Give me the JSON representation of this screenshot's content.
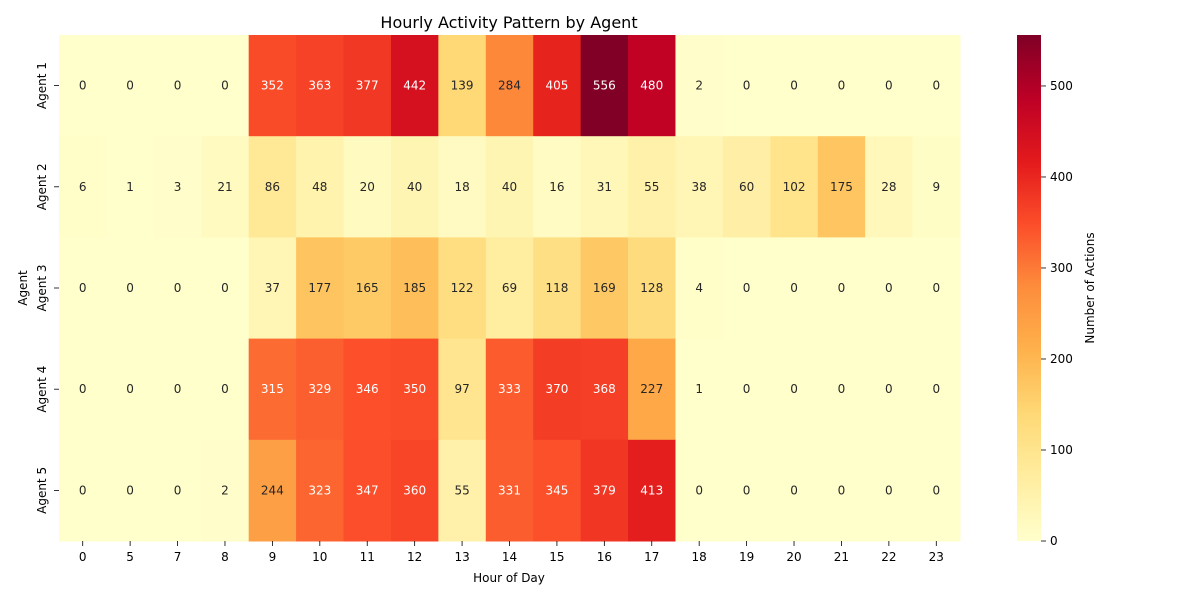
{
  "chart_data": {
    "type": "heatmap",
    "title": "Hourly Activity Pattern by Agent",
    "xlabel": "Hour of Day",
    "ylabel": "Agent",
    "x": [
      "0",
      "5",
      "7",
      "8",
      "9",
      "10",
      "11",
      "12",
      "13",
      "14",
      "15",
      "16",
      "17",
      "18",
      "19",
      "20",
      "21",
      "22",
      "23"
    ],
    "y": [
      "Agent 1",
      "Agent 2",
      "Agent 3",
      "Agent 4",
      "Agent 5"
    ],
    "values": [
      [
        0,
        0,
        0,
        0,
        352,
        363,
        377,
        442,
        139,
        284,
        405,
        556,
        480,
        2,
        0,
        0,
        0,
        0,
        0
      ],
      [
        6,
        1,
        3,
        21,
        86,
        48,
        20,
        40,
        18,
        40,
        16,
        31,
        55,
        38,
        60,
        102,
        175,
        28,
        9
      ],
      [
        0,
        0,
        0,
        0,
        37,
        177,
        165,
        185,
        122,
        69,
        118,
        169,
        128,
        4,
        0,
        0,
        0,
        0,
        0
      ],
      [
        0,
        0,
        0,
        0,
        315,
        329,
        346,
        350,
        97,
        333,
        370,
        368,
        227,
        1,
        0,
        0,
        0,
        0,
        0
      ],
      [
        0,
        0,
        0,
        2,
        244,
        323,
        347,
        360,
        55,
        331,
        345,
        379,
        413,
        0,
        0,
        0,
        0,
        0,
        0
      ]
    ],
    "colorbar": {
      "label": "Number of Actions",
      "range": [
        0,
        556
      ],
      "ticks": [
        0,
        100,
        200,
        300,
        400,
        500
      ]
    },
    "colormap": [
      "#ffffcc",
      "#ffeda0",
      "#fed976",
      "#feb24c",
      "#fd8d3c",
      "#fc4e2a",
      "#e31a1c",
      "#bd0026",
      "#800026"
    ],
    "annotated": true,
    "grid": false
  }
}
